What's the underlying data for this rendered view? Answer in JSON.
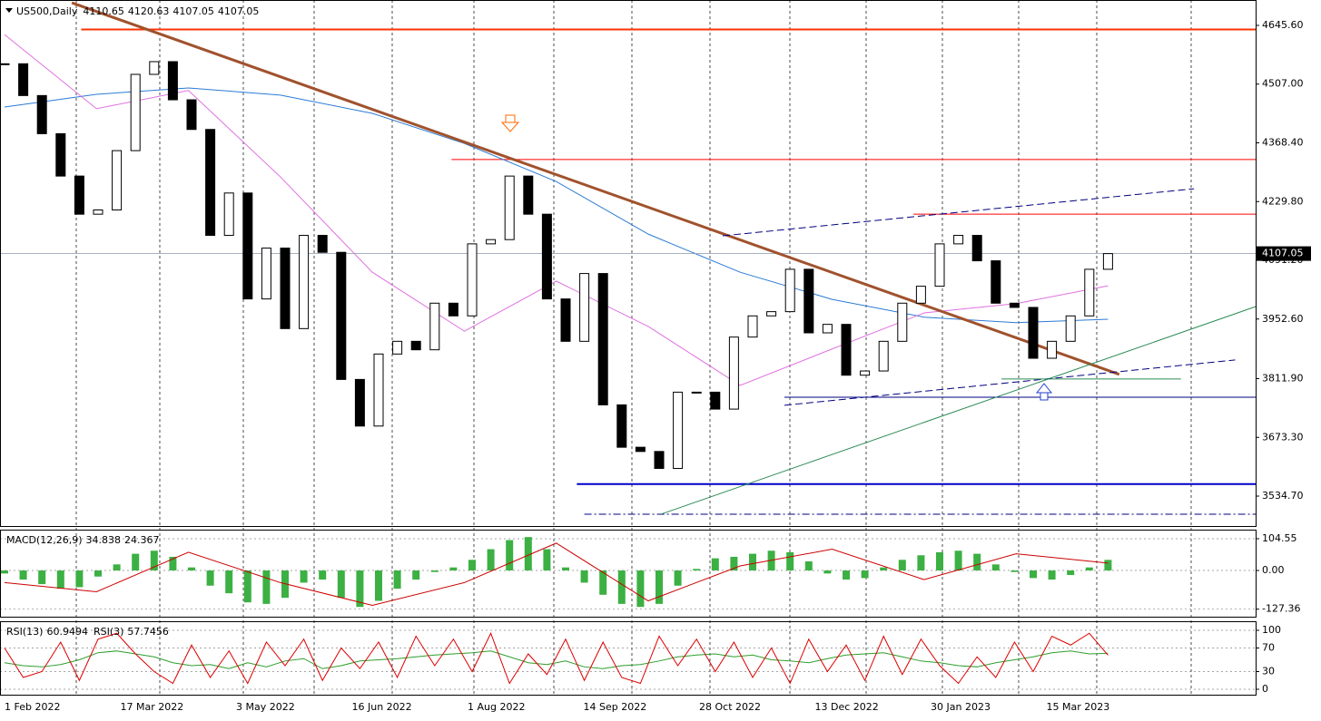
{
  "chart_data": [
    {
      "type": "candlestick",
      "title": "US500,Daily",
      "last_bar": {
        "open": 4110.65,
        "high": 4120.63,
        "low": 4107.05,
        "close": 4107.05
      },
      "closes": [
        4555,
        4480,
        4390,
        4290,
        4200,
        4210,
        4350,
        4530,
        4560,
        4470,
        4400,
        4150,
        4250,
        4000,
        4120,
        3930,
        4150,
        4110,
        3810,
        3700,
        3870,
        3900,
        3880,
        3990,
        3960,
        4130,
        4140,
        4290,
        4200,
        4000,
        3900,
        4060,
        3750,
        3650,
        3640,
        3600,
        3780,
        3780,
        3740,
        3910,
        3960,
        3970,
        4070,
        3920,
        3940,
        3820,
        3830,
        3900,
        3990,
        4030,
        4130,
        4150,
        4090,
        3990,
        3980,
        3860,
        3900,
        3960,
        4070,
        4107.05
      ],
      "up_color": "#ffffff",
      "down_color": "#000000",
      "lines": [
        {
          "color": "#2b7bd6",
          "values": [
            4453,
            4483,
            4498,
            4481,
            4438,
            4367,
            4277,
            4153,
            4063,
            3999,
            3957,
            3944,
            3952
          ]
        },
        {
          "color": "#e070e0",
          "values": [
            4624,
            4449,
            4492,
            4288,
            4063,
            3924,
            4042,
            3935,
            3796,
            3882,
            3967,
            3989,
            4031
          ]
        }
      ],
      "levels": [
        {
          "value": 4636,
          "color": "#ff3300",
          "from": 4.1,
          "width": 2,
          "style": "solid"
        },
        {
          "value": 4329,
          "color": "#ff0000",
          "from": 23.9,
          "width": 1,
          "style": "solid"
        },
        {
          "value": 4200,
          "color": "#ff0000",
          "from": 48.6,
          "width": 1,
          "style": "solid"
        },
        {
          "value": 3768,
          "color": "#000080",
          "from": 41.7,
          "width": 1,
          "style": "solid"
        },
        {
          "value": 3563,
          "color": "#0000cc",
          "from": 30.6,
          "width": 2,
          "style": "solid"
        },
        {
          "value": 3492,
          "color": "#000080",
          "from": 31,
          "width": 1,
          "style": "dashdot"
        }
      ],
      "trendlines": [
        {
          "x": [
            3.6,
            59.6
          ],
          "y": [
            4699,
            3822
          ],
          "color": "#a0522d",
          "width": 3,
          "style": "solid"
        },
        {
          "x": [
            35.1,
            66.9
          ],
          "y": [
            3492,
            3982
          ],
          "color": "#2e8b57",
          "width": 1,
          "style": "solid"
        },
        {
          "x": [
            38.4,
            63.6
          ],
          "y": [
            4149,
            4260
          ],
          "color": "#000080",
          "width": 1,
          "style": "dash"
        },
        {
          "x": [
            41.7,
            65.8
          ],
          "y": [
            3749,
            3856
          ],
          "color": "#000080",
          "width": 1,
          "style": "dash"
        },
        {
          "x": [
            53.3,
            62.9
          ],
          "y": [
            3811,
            3811
          ],
          "color": "#2e8b57",
          "width": 1,
          "style": "solid"
        }
      ],
      "xlabels": [
        "1 Feb 2022",
        "17 Mar 2022",
        "3 May 2022",
        "16 Jun 2022",
        "1 Aug 2022",
        "14 Sep 2022",
        "28 Oct 2022",
        "13 Dec 2022",
        "30 Jan 2023",
        "15 Mar 2023"
      ],
      "ylim": [
        3464.1,
        4705.5
      ],
      "yticks": [
        {
          "value": 4645.6,
          "label": "4645.60"
        },
        {
          "value": 4507,
          "label": "4507.00"
        },
        {
          "value": 4368.4,
          "label": "4368.40"
        },
        {
          "value": 4229.8,
          "label": "4229.80"
        },
        {
          "value": 4091.2,
          "label": "4091.20"
        },
        {
          "value": 3952.6,
          "label": "3952.60"
        },
        {
          "value": 3811.9,
          "label": "3811.90"
        },
        {
          "value": 3673.3,
          "label": "3673.30"
        },
        {
          "value": 3534.7,
          "label": "3534.70"
        }
      ]
    },
    {
      "type": "macd",
      "label": "MACD(12,26,9)",
      "histogram": {
        "color": "#3cb043",
        "values": [
          -10,
          -30,
          -45,
          -60,
          -55,
          -20,
          20,
          55,
          65,
          45,
          10,
          -50,
          -75,
          -105,
          -110,
          -90,
          -40,
          -30,
          -90,
          -120,
          -100,
          -60,
          -30,
          -5,
          10,
          35,
          70,
          100,
          110,
          70,
          10,
          -40,
          -80,
          -110,
          -120,
          -110,
          -50,
          5,
          40,
          45,
          55,
          65,
          60,
          30,
          -10,
          -30,
          -25,
          10,
          35,
          50,
          60,
          65,
          55,
          20,
          -5,
          -25,
          -30,
          -15,
          10,
          34.838
        ]
      },
      "signal": {
        "color": "#cc0000",
        "values": [
          -40,
          -70,
          60,
          -40,
          -115,
          -40,
          90,
          -100,
          15,
          70,
          -30,
          55,
          24.367
        ]
      },
      "ylim": [
        -152.2,
        131.4
      ],
      "yticks": [
        104.55,
        {
          "value": 0,
          "label": "0.00"
        },
        -127.36
      ]
    },
    {
      "type": "rsi",
      "series": [
        {
          "name": "RSI(13)",
          "color": "#2e9e2e",
          "values": [
            45,
            40,
            38,
            42,
            50,
            62,
            65,
            60,
            55,
            45,
            40,
            42,
            35,
            45,
            38,
            48,
            52,
            35,
            40,
            48,
            50,
            52,
            55,
            58,
            60,
            62,
            65,
            55,
            45,
            42,
            48,
            38,
            35,
            40,
            42,
            48,
            55,
            58,
            60,
            55,
            58,
            50,
            48,
            45,
            52,
            58,
            60,
            62,
            55,
            48,
            45,
            40,
            38,
            45,
            50,
            55,
            62,
            65,
            60,
            60.9494
          ]
        },
        {
          "name": "RSI(3)",
          "color": "#dd0000",
          "values": [
            70,
            20,
            30,
            80,
            15,
            85,
            95,
            60,
            30,
            10,
            75,
            20,
            65,
            10,
            80,
            40,
            85,
            15,
            70,
            35,
            80,
            20,
            90,
            40,
            85,
            30,
            95,
            10,
            60,
            25,
            85,
            15,
            80,
            20,
            10,
            90,
            40,
            85,
            30,
            80,
            20,
            70,
            10,
            85,
            30,
            75,
            15,
            90,
            25,
            85,
            40,
            10,
            55,
            20,
            80,
            30,
            90,
            75,
            95,
            57.7456
          ]
        }
      ],
      "ylim": [
        -9.2,
        112.3
      ],
      "yticks": [
        100,
        70,
        30,
        0
      ]
    }
  ]
}
